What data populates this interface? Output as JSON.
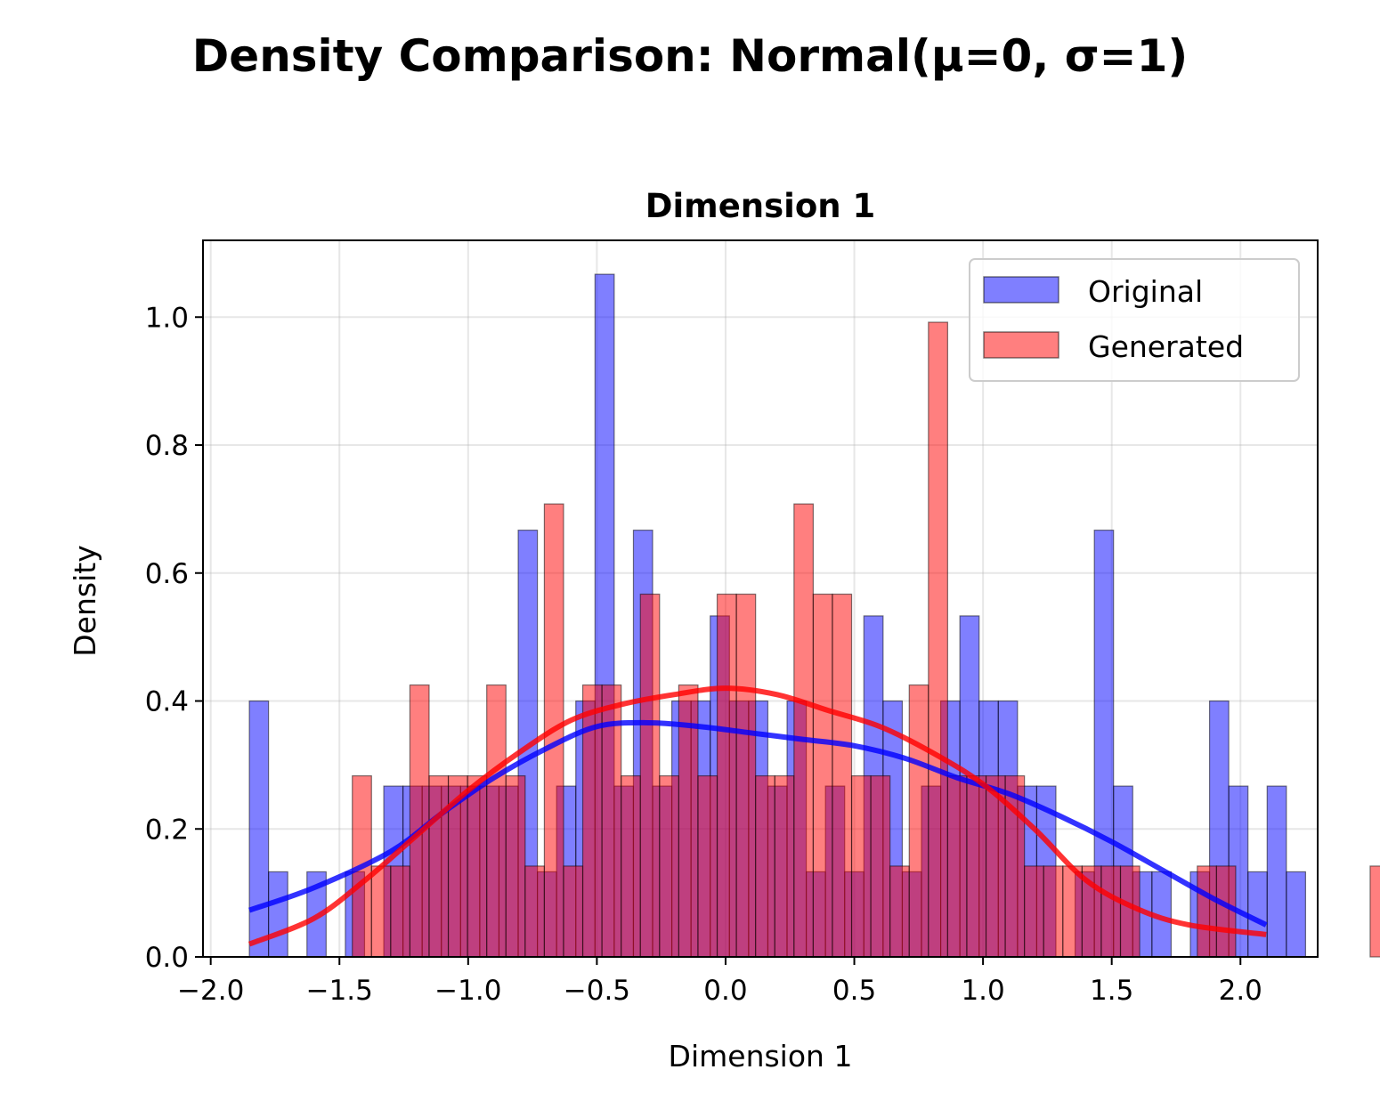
{
  "chart_data": {
    "type": "bar",
    "title": "Density Comparison: Normal(μ=0, σ=1)",
    "subtitle": "Dimension 1",
    "xlabel": "Dimension 1",
    "ylabel": "Density",
    "xlim": [
      -2.03,
      2.3
    ],
    "ylim": [
      0,
      1.12
    ],
    "xticks": [
      -2.0,
      -1.5,
      -1.0,
      -0.5,
      0.0,
      0.5,
      1.0,
      1.5,
      2.0
    ],
    "xtick_labels": [
      "−2.0",
      "−1.5",
      "−1.0",
      "−0.5",
      "0.0",
      "0.5",
      "1.0",
      "1.5",
      "2.0"
    ],
    "yticks": [
      0.0,
      0.2,
      0.4,
      0.6,
      0.8,
      1.0
    ],
    "ytick_labels": [
      "0.0",
      "0.2",
      "0.4",
      "0.6",
      "0.8",
      "1.0"
    ],
    "grid": true,
    "legend_position": "top-right",
    "series": [
      {
        "name": "Original",
        "color": "#0000ff",
        "bin_start": -1.85,
        "bin_width": 0.0746,
        "values": [
          0.4,
          0.133,
          0,
          0.133,
          0,
          0.133,
          0,
          0.267,
          0.267,
          0.267,
          0.267,
          0.267,
          0.267,
          0.267,
          0.667,
          0.133,
          0.267,
          0.4,
          1.067,
          0.267,
          0.667,
          0.267,
          0.4,
          0.4,
          0.533,
          0.4,
          0.4,
          0.267,
          0.4,
          0.133,
          0.267,
          0.133,
          0.533,
          0.4,
          0.133,
          0.267,
          0.4,
          0.533,
          0.4,
          0.4,
          0.267,
          0.267,
          0,
          0.133,
          0.667,
          0.267,
          0.133,
          0.133,
          0,
          0.133,
          0.4,
          0.267,
          0.133,
          0.267,
          0.133
        ],
        "kde": {
          "x": [
            -1.85,
            -1.6,
            -1.3,
            -1.1,
            -0.9,
            -0.7,
            -0.5,
            -0.3,
            -0.1,
            0.1,
            0.3,
            0.5,
            0.7,
            0.9,
            1.1,
            1.3,
            1.5,
            1.7,
            1.9,
            2.1
          ],
          "y": [
            0.073,
            0.108,
            0.165,
            0.225,
            0.28,
            0.325,
            0.36,
            0.366,
            0.36,
            0.35,
            0.34,
            0.33,
            0.31,
            0.28,
            0.255,
            0.22,
            0.18,
            0.135,
            0.09,
            0.05
          ]
        }
      },
      {
        "name": "Generated",
        "color": "#ff0000",
        "bin_start": -1.45,
        "bin_width": 0.0746,
        "values": [
          0.283,
          0.142,
          0.142,
          0.425,
          0.283,
          0.283,
          0.283,
          0.425,
          0.283,
          0.142,
          0.708,
          0.142,
          0.425,
          0.425,
          0.283,
          0.567,
          0.283,
          0.425,
          0.283,
          0.567,
          0.567,
          0.283,
          0.283,
          0.708,
          0.567,
          0.567,
          0.283,
          0.283,
          0.142,
          0.425,
          0.992,
          0.283,
          0.283,
          0.283,
          0.283,
          0.142,
          0.142,
          0.142,
          0.142,
          0.142,
          0.142,
          0,
          0,
          0,
          0.142,
          0.142,
          0,
          0,
          0,
          0,
          0,
          0,
          0,
          0.142
        ],
        "kde": {
          "x": [
            -1.85,
            -1.6,
            -1.4,
            -1.2,
            -1.0,
            -0.8,
            -0.6,
            -0.4,
            -0.2,
            0.0,
            0.2,
            0.4,
            0.6,
            0.8,
            1.0,
            1.2,
            1.4,
            1.6,
            1.8,
            2.1
          ],
          "y": [
            0.02,
            0.06,
            0.12,
            0.19,
            0.26,
            0.32,
            0.37,
            0.395,
            0.41,
            0.42,
            0.41,
            0.385,
            0.36,
            0.32,
            0.27,
            0.2,
            0.12,
            0.075,
            0.05,
            0.035
          ]
        }
      }
    ]
  }
}
